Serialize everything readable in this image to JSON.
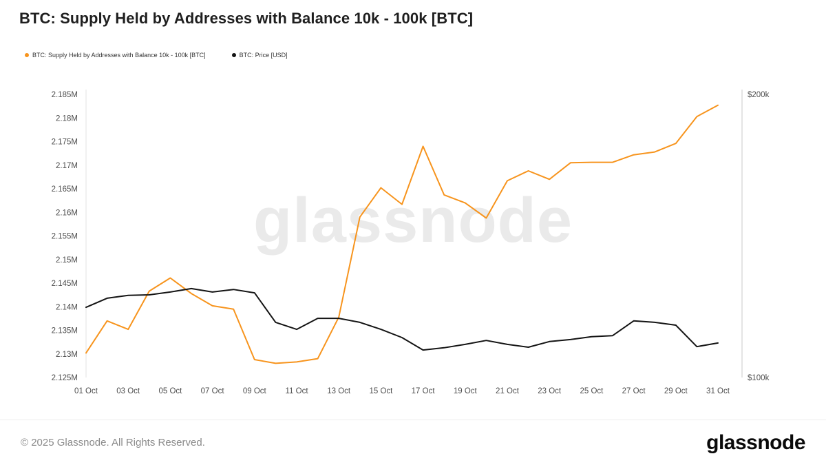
{
  "header": {
    "title": "BTC: Supply Held by Addresses with Balance 10k - 100k [BTC]"
  },
  "legend": {
    "items": [
      {
        "label": "BTC: Supply Held by Addresses with Balance 10k - 100k [BTC]",
        "color": "#f7941d"
      },
      {
        "label": "BTC: Price [USD]",
        "color": "#141414"
      }
    ]
  },
  "watermark": "glassnode",
  "footer": {
    "copyright": "© 2025 Glassnode. All Rights Reserved.",
    "logo": "glassnode"
  },
  "chart_data": {
    "type": "line",
    "title": "BTC: Supply Held by Addresses with Balance 10k - 100k [BTC]",
    "x_days": [
      1,
      2,
      3,
      4,
      5,
      6,
      7,
      8,
      9,
      10,
      11,
      12,
      13,
      14,
      15,
      16,
      17,
      18,
      19,
      20,
      21,
      22,
      23,
      24,
      25,
      26,
      27,
      28,
      29,
      30,
      31
    ],
    "x_tick_days": [
      1,
      3,
      5,
      7,
      9,
      11,
      13,
      15,
      17,
      19,
      21,
      23,
      25,
      27,
      29,
      31
    ],
    "x_tick_labels": [
      "01 Oct",
      "03 Oct",
      "05 Oct",
      "07 Oct",
      "09 Oct",
      "11 Oct",
      "13 Oct",
      "15 Oct",
      "17 Oct",
      "19 Oct",
      "21 Oct",
      "23 Oct",
      "25 Oct",
      "27 Oct",
      "29 Oct",
      "31 Oct"
    ],
    "grid": false,
    "legend_position": "top-left",
    "left_axis": {
      "min": 2.125,
      "max": 2.185,
      "tick_step": 0.005,
      "tick_labels": [
        "2.125M",
        "2.13M",
        "2.135M",
        "2.14M",
        "2.145M",
        "2.15M",
        "2.155M",
        "2.16M",
        "2.165M",
        "2.17M",
        "2.175M",
        "2.18M",
        "2.185M"
      ]
    },
    "right_axis": {
      "min": 100,
      "max": 200,
      "tick_values": [
        100,
        200
      ],
      "tick_labels": [
        "$100k",
        "$200k"
      ]
    },
    "series": [
      {
        "name": "BTC: Supply Held by Addresses with Balance 10k - 100k [BTC]",
        "axis": "left",
        "color": "#f7941d",
        "unit": "M BTC",
        "values": [
          2.1302,
          2.137,
          2.1352,
          2.1433,
          2.1461,
          2.1428,
          2.1402,
          2.1395,
          2.1288,
          2.128,
          2.1283,
          2.129,
          2.1378,
          2.159,
          2.1652,
          2.1617,
          2.174,
          2.1637,
          2.162,
          2.1588,
          2.1667,
          2.1688,
          2.167,
          2.1705,
          2.1706,
          2.1706,
          2.1722,
          2.1728,
          2.1746,
          2.1803,
          2.1827
        ]
      },
      {
        "name": "BTC: Price [USD]",
        "axis": "right",
        "color": "#141414",
        "unit": "k USD",
        "values": [
          124.8,
          128.0,
          129.0,
          129.2,
          130.2,
          131.4,
          130.2,
          131.1,
          129.9,
          119.5,
          117.0,
          120.9,
          120.9,
          119.5,
          117.0,
          114.1,
          109.7,
          110.5,
          111.7,
          113.1,
          111.7,
          110.7,
          112.7,
          113.4,
          114.4,
          114.8,
          120.0,
          119.5,
          118.5,
          110.9,
          112.2
        ]
      }
    ]
  }
}
